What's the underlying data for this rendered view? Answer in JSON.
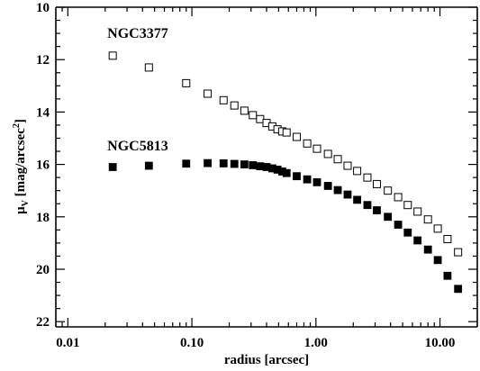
{
  "chart_data": {
    "type": "scatter",
    "xlabel": "radius [arcsec]",
    "ylabel": {
      "main": "μ",
      "sub": "V",
      "units": " [mag/arcsec",
      "sup": "2",
      "close": "]"
    },
    "xscale": "log",
    "xlim": [
      0.008,
      20
    ],
    "ylim": [
      22.2,
      10
    ],
    "y_inverted": true,
    "grid": false,
    "x_ticks": [
      {
        "value": 0.01,
        "label": "0.01"
      },
      {
        "value": 0.1,
        "label": "0.10"
      },
      {
        "value": 1,
        "label": "1.00"
      },
      {
        "value": 10,
        "label": "10.00"
      }
    ],
    "y_ticks": [
      {
        "value": 10,
        "label": "10"
      },
      {
        "value": 12,
        "label": "12"
      },
      {
        "value": 14,
        "label": "14"
      },
      {
        "value": 16,
        "label": "16"
      },
      {
        "value": 18,
        "label": "18"
      },
      {
        "value": 20,
        "label": "20"
      },
      {
        "value": 22,
        "label": "22"
      }
    ],
    "series": [
      {
        "name": "NGC3377",
        "marker": "open-square",
        "label_at": {
          "x": 0.023,
          "y": 11.3
        },
        "x": [
          0.023,
          0.045,
          0.09,
          0.134,
          0.18,
          0.22,
          0.265,
          0.31,
          0.355,
          0.4,
          0.445,
          0.49,
          0.535,
          0.58,
          0.7,
          0.85,
          1.02,
          1.25,
          1.5,
          1.8,
          2.15,
          2.6,
          3.1,
          3.8,
          4.6,
          5.5,
          6.6,
          8.0,
          9.6,
          11.5,
          14.0
        ],
        "y": [
          11.85,
          12.3,
          12.9,
          13.3,
          13.55,
          13.75,
          13.95,
          14.12,
          14.27,
          14.42,
          14.55,
          14.66,
          14.74,
          14.78,
          14.95,
          15.2,
          15.4,
          15.6,
          15.8,
          16.05,
          16.25,
          16.5,
          16.75,
          17.0,
          17.25,
          17.55,
          17.8,
          18.1,
          18.45,
          18.85,
          19.35
        ]
      },
      {
        "name": "NGC5813",
        "marker": "filled-square",
        "label_at": {
          "x": 0.023,
          "y": 15.6
        },
        "x": [
          0.023,
          0.045,
          0.09,
          0.134,
          0.18,
          0.22,
          0.265,
          0.31,
          0.355,
          0.4,
          0.445,
          0.49,
          0.535,
          0.58,
          0.7,
          0.85,
          1.02,
          1.25,
          1.5,
          1.8,
          2.15,
          2.6,
          3.1,
          3.8,
          4.6,
          5.5,
          6.6,
          8.0,
          9.6,
          11.5,
          14.0
        ],
        "y": [
          16.1,
          16.05,
          15.97,
          15.95,
          15.96,
          15.98,
          16.0,
          16.03,
          16.07,
          16.1,
          16.15,
          16.2,
          16.27,
          16.33,
          16.45,
          16.57,
          16.68,
          16.82,
          16.98,
          17.15,
          17.35,
          17.55,
          17.75,
          18.0,
          18.3,
          18.6,
          18.9,
          19.25,
          19.65,
          20.25,
          20.75
        ]
      }
    ]
  }
}
